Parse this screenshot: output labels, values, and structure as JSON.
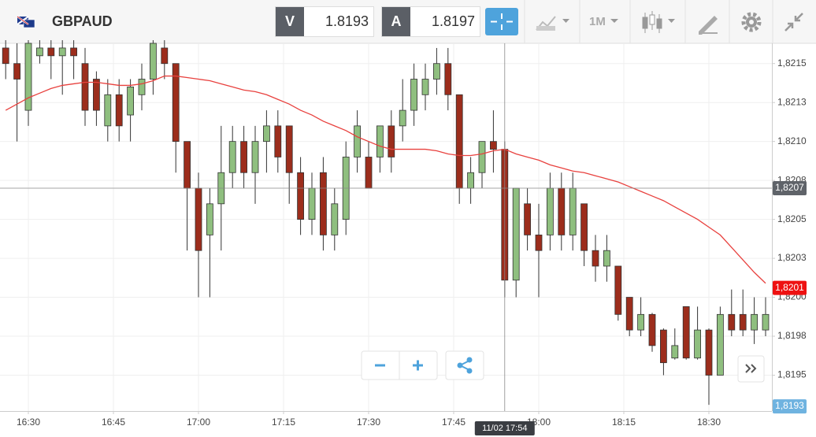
{
  "header": {
    "symbol": "GBPAUD",
    "bid_label": "V",
    "bid": "1.8193",
    "ask_label": "A",
    "ask": "1.8197",
    "timeframe": "1M"
  },
  "chart_data": {
    "type": "candlestick",
    "categories": [
      "16:26",
      "16:28",
      "16:30",
      "16:32",
      "16:34",
      "16:36",
      "16:38",
      "16:40",
      "16:42",
      "16:44",
      "16:46",
      "16:48",
      "16:50",
      "16:52",
      "16:54",
      "16:56",
      "16:58",
      "17:00",
      "17:02",
      "17:04",
      "17:06",
      "17:08",
      "17:10",
      "17:12",
      "17:14",
      "17:16",
      "17:18",
      "17:20",
      "17:22",
      "17:24",
      "17:26",
      "17:28",
      "17:30",
      "17:32",
      "17:34",
      "17:36",
      "17:38",
      "17:40",
      "17:42",
      "17:44",
      "17:46",
      "17:48",
      "17:50",
      "17:52",
      "17:54",
      "17:56",
      "17:58",
      "18:00",
      "18:02",
      "18:04",
      "18:06",
      "18:08",
      "18:10",
      "18:12",
      "18:14",
      "18:16",
      "18:18",
      "18:20",
      "18:22",
      "18:24",
      "18:26",
      "18:28",
      "18:30",
      "18:32",
      "18:34",
      "18:36",
      "18:38",
      "18:40"
    ],
    "open": [
      1.8216,
      1.8215,
      1.8212,
      1.82155,
      1.8216,
      1.82155,
      1.8216,
      1.8215,
      1.8214,
      1.8211,
      1.8213,
      1.82117,
      1.8213,
      1.8214,
      1.8216,
      1.8215,
      1.821,
      1.8207,
      1.8204,
      1.8206,
      1.8208,
      1.821,
      1.8208,
      1.821,
      1.8211,
      1.8211,
      1.8208,
      1.8205,
      1.8208,
      1.8204,
      1.8205,
      1.8209,
      1.8209,
      1.8209,
      1.8211,
      1.8211,
      1.8212,
      1.8213,
      1.8214,
      1.8215,
      1.8213,
      1.8207,
      1.8208,
      1.821,
      1.82095,
      1.82011,
      1.8206,
      1.8204,
      1.8204,
      1.8207,
      1.8204,
      1.8206,
      1.8203,
      1.8202,
      1.8202,
      1.82,
      1.81979,
      1.81989,
      1.81979,
      1.81961,
      1.81994,
      1.81961,
      1.81979,
      1.8195,
      1.81989,
      1.81989,
      1.81979,
      1.81979
    ],
    "high": [
      1.82165,
      1.82163,
      1.82165,
      1.82165,
      1.82165,
      1.82165,
      1.82165,
      1.8216,
      1.82145,
      1.8214,
      1.8214,
      1.8214,
      1.8215,
      1.82165,
      1.82165,
      1.8215,
      1.821,
      1.8208,
      1.8207,
      1.8211,
      1.8211,
      1.8211,
      1.8211,
      1.8212,
      1.8212,
      1.8211,
      1.8209,
      1.8208,
      1.8209,
      1.8207,
      1.821,
      1.8212,
      1.821,
      1.8211,
      1.8212,
      1.8214,
      1.8215,
      1.8215,
      1.8216,
      1.8216,
      1.8213,
      1.8209,
      1.821,
      1.8212,
      1.821,
      1.8207,
      1.8207,
      1.8206,
      1.8208,
      1.8208,
      1.8208,
      1.8206,
      1.8204,
      1.8204,
      1.8202,
      1.82,
      1.82,
      1.8199,
      1.8198,
      1.8198,
      1.81994,
      1.81994,
      1.8198,
      1.81994,
      1.82005,
      1.82005,
      1.82,
      1.82
    ],
    "low": [
      1.8214,
      1.821,
      1.8211,
      1.8215,
      1.8214,
      1.8213,
      1.8214,
      1.8211,
      1.8211,
      1.821,
      1.821,
      1.821,
      1.8212,
      1.8213,
      1.8214,
      1.8208,
      1.8203,
      1.82,
      1.82,
      1.8203,
      1.8207,
      1.8207,
      1.8206,
      1.8208,
      1.8208,
      1.8206,
      1.8204,
      1.8204,
      1.8203,
      1.8203,
      1.8204,
      1.8208,
      1.8207,
      1.8208,
      1.8208,
      1.821,
      1.8211,
      1.8212,
      1.8213,
      1.8212,
      1.8206,
      1.8206,
      1.8207,
      1.8208,
      1.82,
      1.82,
      1.8203,
      1.82,
      1.8203,
      1.8203,
      1.8203,
      1.8202,
      1.8201,
      1.8201,
      1.81985,
      1.81975,
      1.81975,
      1.81965,
      1.8195,
      1.8196,
      1.8196,
      1.8196,
      1.81931,
      1.8195,
      1.81975,
      1.81975,
      1.8197,
      1.81975
    ],
    "close": [
      1.8215,
      1.8214,
      1.82163,
      1.8216,
      1.82155,
      1.8216,
      1.82155,
      1.8212,
      1.8212,
      1.8213,
      1.8211,
      1.82135,
      1.8214,
      1.82163,
      1.8215,
      1.821,
      1.8207,
      1.8203,
      1.8206,
      1.8208,
      1.821,
      1.8208,
      1.821,
      1.8211,
      1.8209,
      1.8208,
      1.8205,
      1.8207,
      1.8204,
      1.8206,
      1.8209,
      1.8211,
      1.8207,
      1.8211,
      1.8209,
      1.8212,
      1.8214,
      1.8214,
      1.8215,
      1.8213,
      1.8207,
      1.8208,
      1.821,
      1.82095,
      1.82011,
      1.8207,
      1.8204,
      1.8203,
      1.8207,
      1.8204,
      1.8207,
      1.8203,
      1.8202,
      1.8203,
      1.81989,
      1.81979,
      1.81989,
      1.81969,
      1.81958,
      1.81969,
      1.81961,
      1.81979,
      1.8195,
      1.81989,
      1.81979,
      1.81979,
      1.81989,
      1.81989
    ],
    "up_color": "#8fbf7f",
    "down_color": "#9c2d1c",
    "moving_average": {
      "color": "#e8413e",
      "values": [
        1.8212,
        1.82124,
        1.82128,
        1.82131,
        1.82134,
        1.82136,
        1.82137,
        1.82138,
        1.82138,
        1.82137,
        1.82136,
        1.82136,
        1.82137,
        1.82139,
        1.82142,
        1.82142,
        1.82141,
        1.8214,
        1.82139,
        1.82137,
        1.82135,
        1.82133,
        1.82132,
        1.8213,
        1.82127,
        1.82124,
        1.8212,
        1.82117,
        1.82113,
        1.8211,
        1.82107,
        1.82103,
        1.821,
        1.82097,
        1.82095,
        1.82095,
        1.82095,
        1.82095,
        1.82094,
        1.82092,
        1.82091,
        1.82091,
        1.82092,
        1.82094,
        1.82095,
        1.82092,
        1.8209,
        1.82088,
        1.82085,
        1.82083,
        1.82081,
        1.8208,
        1.82078,
        1.82076,
        1.82074,
        1.82071,
        1.82068,
        1.82065,
        1.82062,
        1.82058,
        1.82054,
        1.8205,
        1.82045,
        1.8204,
        1.82032,
        1.82024,
        1.82016,
        1.82009
      ]
    },
    "ylim": [
      1.81927,
      1.82163
    ],
    "yticks": [
      {
        "value": 1.8195,
        "label": "1,8195"
      },
      {
        "value": 1.81975,
        "label": "1,8198"
      },
      {
        "value": 1.82,
        "label": "1,8200"
      },
      {
        "value": 1.82025,
        "label": "1,8203"
      },
      {
        "value": 1.8205,
        "label": "1,8205"
      },
      {
        "value": 1.82075,
        "label": "1,8208"
      },
      {
        "value": 1.821,
        "label": "1,8210"
      },
      {
        "value": 1.82125,
        "label": "1,8213"
      },
      {
        "value": 1.8215,
        "label": "1,8215"
      }
    ],
    "xticks": [
      "16:30",
      "16:45",
      "17:00",
      "17:15",
      "17:30",
      "17:45",
      "18:00",
      "18:15",
      "18:30"
    ],
    "grid": true,
    "crosshair": {
      "x": "17:54",
      "label": "11/02 17:54"
    },
    "price_tags": [
      {
        "value": 1.8207,
        "label": "1,8207",
        "color": "#5f6369"
      },
      {
        "value": 1.82006,
        "label": "1,8201",
        "color": "#ee1111"
      },
      {
        "value": 1.8193,
        "label": "1,8193",
        "color": "#6fb3e0"
      }
    ]
  }
}
